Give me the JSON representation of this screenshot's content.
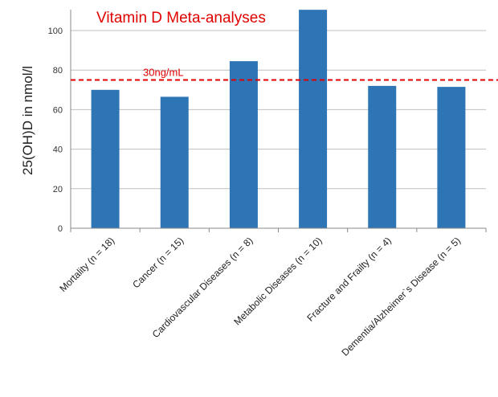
{
  "chart_data": {
    "type": "bar",
    "title": "Vitamin D Meta-analyses",
    "ylabel": "25(OH)D in nmol/l",
    "xlabel": "",
    "ylim": [
      0,
      110
    ],
    "yticks": [
      0,
      20,
      40,
      60,
      80,
      100
    ],
    "grid": true,
    "categories": [
      "Mortality (n = 18)",
      "Cancer (n = 15)",
      "Cardiovascular Diseases (n = 8)",
      "Metabolic Diseases (n = 10)",
      "Fracture and Frailty (n = 4)",
      "Dementia/Alzheimer`s Disease (n = 5)"
    ],
    "values": [
      70,
      66.5,
      84.5,
      110.5,
      72,
      71.5
    ],
    "reference_line": {
      "value": 75,
      "label": "30ng/mL",
      "style": "dashed"
    },
    "colors": {
      "bar": "#2e75b6",
      "reference": "#e00000",
      "title": "#e00000",
      "grid": "#bfbfbf",
      "axis": "#888888"
    }
  }
}
